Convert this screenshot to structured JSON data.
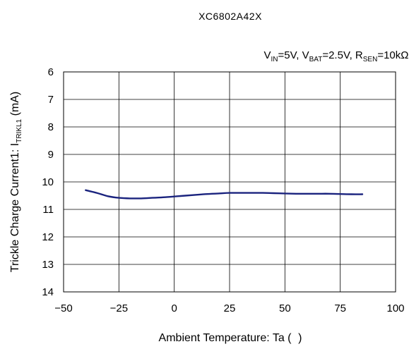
{
  "chart_data": {
    "type": "line",
    "title": "XC6802A42X",
    "conditions": {
      "vin_main": "V",
      "vin_sub": "IN",
      "vin_val": "=5V, ",
      "vbat_main": "V",
      "vbat_sub": "BAT",
      "vbat_val": "=2.5V, ",
      "rsen_main": "R",
      "rsen_sub": "SEN",
      "rsen_val": "=10kΩ"
    },
    "xlabel": "Ambient Temperature: Ta (   )",
    "ylabel_main": "Trickle Charge Current1: I",
    "ylabel_sub": "TRIKL1",
    "ylabel_unit": " (mA)",
    "xlim": [
      -50,
      100
    ],
    "ylim": [
      6,
      14
    ],
    "y_inverted": true,
    "xticks": [
      "−50",
      "−25",
      "0",
      "25",
      "50",
      "75",
      "100"
    ],
    "yticks": [
      "6",
      "7",
      "8",
      "9",
      "10",
      "11",
      "12",
      "13",
      "14"
    ],
    "xtick_values": [
      -50,
      -25,
      0,
      25,
      50,
      75,
      100
    ],
    "ytick_values": [
      6,
      7,
      8,
      9,
      10,
      11,
      12,
      13,
      14
    ],
    "grid": true,
    "series": [
      {
        "color": "#1a237e",
        "x": [
          -40,
          -35,
          -30,
          -25,
          -20,
          -15,
          -10,
          -5,
          0,
          5,
          10,
          15,
          20,
          25,
          30,
          35,
          40,
          45,
          50,
          55,
          60,
          65,
          70,
          75,
          80,
          85
        ],
        "y": [
          10.3,
          10.4,
          10.52,
          10.58,
          10.6,
          10.6,
          10.58,
          10.56,
          10.53,
          10.5,
          10.47,
          10.44,
          10.42,
          10.4,
          10.4,
          10.4,
          10.4,
          10.41,
          10.42,
          10.43,
          10.43,
          10.43,
          10.43,
          10.44,
          10.45,
          10.45
        ]
      }
    ]
  }
}
